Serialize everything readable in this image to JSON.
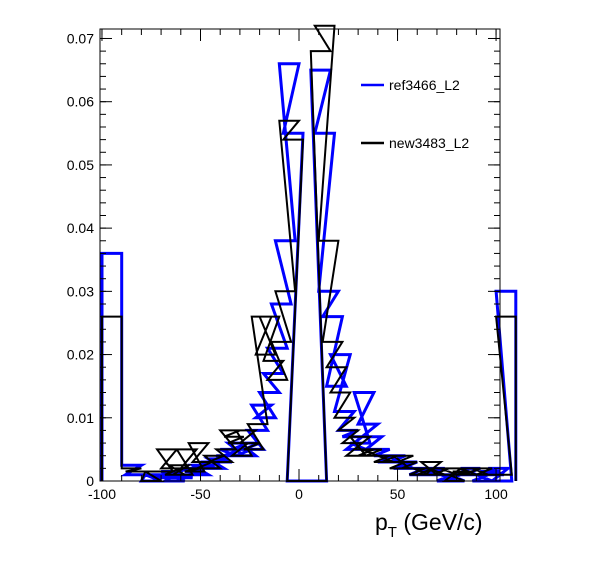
{
  "chart_data": {
    "type": "line",
    "subtype": "step-histogram",
    "title": "",
    "xlabel": "p",
    "xlabel_sub": "T",
    "xlabel_units": " (GeV/c)",
    "ylabel": "",
    "xlim": [
      -101,
      102
    ],
    "ylim": [
      0,
      0.0715
    ],
    "x_ticks": [
      -100,
      -50,
      0,
      50,
      100
    ],
    "y_ticks": [
      0,
      0.01,
      0.02,
      0.03,
      0.04,
      0.05,
      0.06,
      0.07
    ],
    "x_tick_labels": [
      "-100",
      "-50",
      "0",
      "50",
      "100"
    ],
    "y_tick_labels": [
      "0",
      "0.01",
      "0.02",
      "0.03",
      "0.04",
      "0.05",
      "0.06",
      "0.07"
    ],
    "grid": false,
    "legend_position": "top-right",
    "series": [
      {
        "name": "ref3466_L2",
        "color": "#0000ff",
        "x": [
          -100,
          -90,
          -88,
          -80,
          -78,
          -74,
          -72,
          -70,
          -68,
          -66,
          -64,
          -62,
          -60,
          -58,
          -56,
          -54,
          -52,
          -50,
          -48,
          -46,
          -44,
          -42,
          -40,
          -38,
          -36,
          -34,
          -32,
          -30,
          -28,
          -26,
          -24,
          -22,
          -20,
          -18,
          -16,
          -14,
          -12,
          -10,
          -8,
          -6,
          -4,
          -2,
          0,
          2,
          4,
          6,
          8,
          10,
          12,
          14,
          16,
          18,
          20,
          22,
          24,
          26,
          28,
          30,
          32,
          34,
          36,
          38,
          40,
          42,
          44,
          46,
          48,
          50,
          52,
          54,
          56,
          58,
          60,
          62,
          64,
          66,
          68,
          70,
          72,
          74,
          76,
          78,
          80,
          82,
          84,
          86,
          88,
          90,
          92,
          94,
          96,
          98,
          100
        ],
        "y": [
          0.036,
          0.0025,
          0.001,
          0,
          0.001,
          0.0005,
          0.001,
          0.0015,
          0,
          0.001,
          0.0005,
          0.001,
          0.002,
          0.0015,
          0.001,
          0.0025,
          0.002,
          0.003,
          0.002,
          0.0035,
          0.003,
          0.004,
          0.005,
          0.004,
          0.006,
          0.005,
          0.004,
          0.006,
          0.005,
          0.008,
          0.012,
          0.01,
          0.014,
          0.017,
          0.021,
          0.028,
          0.038,
          0.066,
          0.055,
          0,
          0,
          0,
          0,
          0,
          0,
          0.065,
          0.055,
          0.03,
          0.026,
          0.015,
          0.02,
          0.011,
          0.008,
          0.007,
          0.005,
          0.006,
          0.014,
          0.009,
          0.007,
          0.005,
          0.005,
          0.004,
          0.003,
          0.003,
          0.004,
          0.003,
          0.002,
          0.003,
          0.002,
          0.002,
          0.001,
          0.001,
          0.002,
          0.001,
          0.002,
          0.001,
          0.001,
          0,
          0.001,
          0,
          0.001,
          0.001,
          0.001,
          0.002,
          0.001,
          0.001,
          0,
          0.001,
          0.0015,
          0.001,
          0.002,
          0,
          0.03
        ]
      },
      {
        "name": "new3483_L2",
        "color": "#000000",
        "x": [
          -100,
          -90,
          -88,
          -80,
          -78,
          -74,
          -72,
          -70,
          -68,
          -66,
          -64,
          -62,
          -60,
          -58,
          -56,
          -54,
          -52,
          -50,
          -48,
          -46,
          -44,
          -42,
          -40,
          -38,
          -36,
          -34,
          -32,
          -30,
          -28,
          -26,
          -24,
          -22,
          -20,
          -18,
          -16,
          -14,
          -12,
          -10,
          -8,
          -6,
          -4,
          -2,
          0,
          2,
          4,
          6,
          8,
          10,
          12,
          14,
          16,
          18,
          20,
          22,
          24,
          26,
          28,
          30,
          32,
          34,
          36,
          38,
          40,
          42,
          44,
          46,
          48,
          50,
          52,
          54,
          56,
          58,
          60,
          62,
          64,
          66,
          68,
          70,
          72,
          74,
          76,
          78,
          80,
          82,
          84,
          86,
          88,
          90,
          92,
          94,
          96,
          98,
          100
        ],
        "y": [
          0.026,
          0.002,
          0.0015,
          0,
          0.0015,
          0.0015,
          0.005,
          0.002,
          0.001,
          0.0025,
          0.001,
          0.005,
          0.002,
          0.0015,
          0.006,
          0.003,
          0.002,
          0.002,
          0.004,
          0.003,
          0.003,
          0.005,
          0.008,
          0.007,
          0.006,
          0.004,
          0.008,
          0.006,
          0.005,
          0.009,
          0.026,
          0.02,
          0.026,
          0.019,
          0.016,
          0.022,
          0.03,
          0.057,
          0.054,
          0,
          0,
          0,
          0,
          0,
          0,
          0.068,
          0.072,
          0.038,
          0.022,
          0.018,
          0.014,
          0.01,
          0.008,
          0.006,
          0.004,
          0.007,
          0.005,
          0.004,
          0.005,
          0.004,
          0.004,
          0.003,
          0.004,
          0.003,
          0.003,
          0.002,
          0.004,
          0.003,
          0.002,
          0.002,
          0.001,
          0.002,
          0.001,
          0.003,
          0.001,
          0.002,
          0.001,
          0.001,
          0.002,
          0,
          0.001,
          0.0015,
          0.001,
          0.002,
          0.001,
          0.001,
          0.002,
          0.001,
          0.001,
          0.001,
          0.001,
          0.001,
          0.026
        ]
      }
    ]
  }
}
